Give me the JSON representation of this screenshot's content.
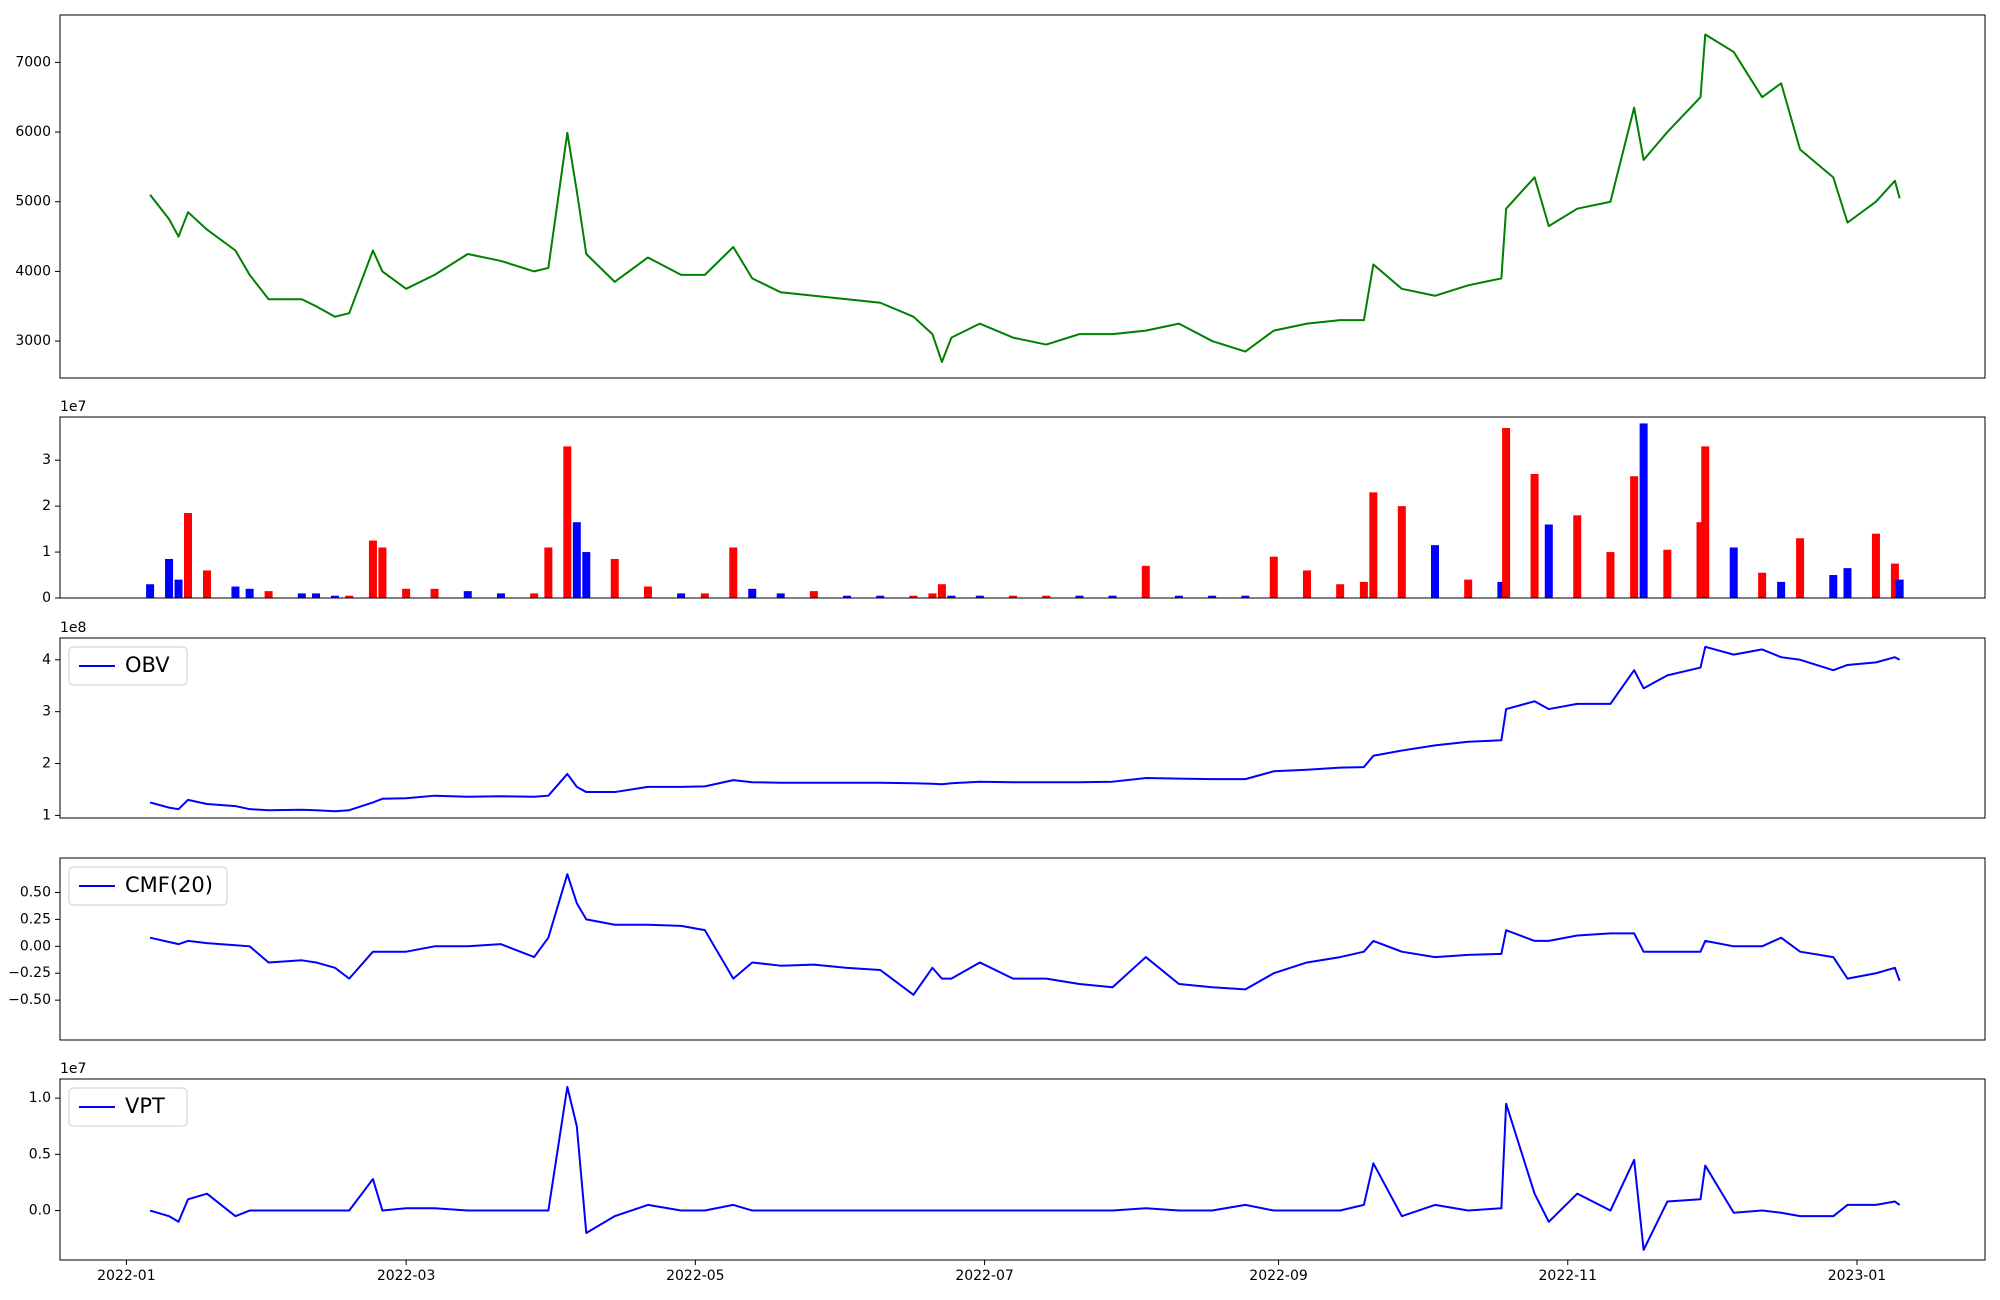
{
  "chart_data": [
    {
      "type": "line",
      "color": "#008000",
      "x": [
        "2022-01-06",
        "2022-01-10",
        "2022-01-12",
        "2022-01-14",
        "2022-01-18",
        "2022-01-24",
        "2022-01-27",
        "2022-01-31",
        "2022-02-07",
        "2022-02-10",
        "2022-02-14",
        "2022-02-17",
        "2022-02-22",
        "2022-02-24",
        "2022-03-01",
        "2022-03-07",
        "2022-03-14",
        "2022-03-21",
        "2022-03-28",
        "2022-03-31",
        "2022-04-04",
        "2022-04-06",
        "2022-04-08",
        "2022-04-14",
        "2022-04-21",
        "2022-04-28",
        "2022-05-03",
        "2022-05-09",
        "2022-05-13",
        "2022-05-19",
        "2022-05-26",
        "2022-06-02",
        "2022-06-09",
        "2022-06-16",
        "2022-06-20",
        "2022-06-22",
        "2022-06-24",
        "2022-06-30",
        "2022-07-07",
        "2022-07-14",
        "2022-07-21",
        "2022-07-28",
        "2022-08-04",
        "2022-08-11",
        "2022-08-18",
        "2022-08-25",
        "2022-08-31",
        "2022-09-07",
        "2022-09-14",
        "2022-09-19",
        "2022-09-21",
        "2022-09-27",
        "2022-10-04",
        "2022-10-11",
        "2022-10-18",
        "2022-10-19",
        "2022-10-25",
        "2022-10-28",
        "2022-11-03",
        "2022-11-10",
        "2022-11-15",
        "2022-11-17",
        "2022-11-22",
        "2022-11-29",
        "2022-11-30",
        "2022-12-06",
        "2022-12-12",
        "2022-12-16",
        "2022-12-20",
        "2022-12-27",
        "2022-12-30",
        "2023-01-05",
        "2023-01-09",
        "2023-01-10"
      ],
      "values": [
        5100,
        4750,
        4500,
        4850,
        4600,
        4300,
        3950,
        3600,
        3600,
        3500,
        3350,
        3400,
        4300,
        4000,
        3750,
        3950,
        4250,
        4150,
        4000,
        4050,
        5990,
        5150,
        4250,
        3850,
        4200,
        3950,
        3950,
        4350,
        3900,
        3700,
        3650,
        3600,
        3550,
        3350,
        3100,
        2700,
        3050,
        3250,
        3050,
        2950,
        3100,
        3100,
        3150,
        3250,
        3000,
        2850,
        3150,
        3250,
        3300,
        3300,
        4100,
        3750,
        3650,
        3800,
        3900,
        4900,
        5350,
        4650,
        4900,
        5000,
        6350,
        5600,
        6000,
        6500,
        7400,
        7150,
        6500,
        6700,
        5750,
        5350,
        4700,
        5000,
        5300,
        5050
      ],
      "xlim": [
        "2021-12-18",
        "2023-01-28"
      ],
      "ylim": [
        2470,
        7680
      ],
      "yticks": [
        3000,
        4000,
        5000,
        6000,
        7000
      ]
    },
    {
      "type": "bar",
      "y_offset_label": "1e7",
      "x": [
        "2022-01-06",
        "2022-01-10",
        "2022-01-12",
        "2022-01-14",
        "2022-01-18",
        "2022-01-24",
        "2022-01-27",
        "2022-01-31",
        "2022-02-07",
        "2022-02-10",
        "2022-02-14",
        "2022-02-17",
        "2022-02-22",
        "2022-02-24",
        "2022-03-01",
        "2022-03-07",
        "2022-03-14",
        "2022-03-21",
        "2022-03-28",
        "2022-03-31",
        "2022-04-04",
        "2022-04-06",
        "2022-04-08",
        "2022-04-14",
        "2022-04-21",
        "2022-04-28",
        "2022-05-03",
        "2022-05-09",
        "2022-05-13",
        "2022-05-19",
        "2022-05-26",
        "2022-06-02",
        "2022-06-09",
        "2022-06-16",
        "2022-06-20",
        "2022-06-22",
        "2022-06-24",
        "2022-06-30",
        "2022-07-07",
        "2022-07-14",
        "2022-07-21",
        "2022-07-28",
        "2022-08-04",
        "2022-08-11",
        "2022-08-18",
        "2022-08-25",
        "2022-08-31",
        "2022-09-07",
        "2022-09-14",
        "2022-09-19",
        "2022-09-21",
        "2022-09-27",
        "2022-10-04",
        "2022-10-11",
        "2022-10-18",
        "2022-10-19",
        "2022-10-25",
        "2022-10-28",
        "2022-11-03",
        "2022-11-10",
        "2022-11-15",
        "2022-11-17",
        "2022-11-22",
        "2022-11-29",
        "2022-11-30",
        "2022-12-06",
        "2022-12-12",
        "2022-12-16",
        "2022-12-20",
        "2022-12-27",
        "2022-12-30",
        "2023-01-05",
        "2023-01-09",
        "2023-01-10"
      ],
      "values": [
        0.3,
        0.85,
        0.4,
        1.85,
        0.6,
        0.25,
        0.2,
        0.15,
        0.1,
        0.1,
        0.05,
        0.05,
        1.25,
        1.1,
        0.2,
        0.2,
        0.15,
        0.1,
        0.1,
        1.1,
        3.3,
        1.65,
        1.0,
        0.85,
        0.25,
        0.1,
        0.1,
        1.1,
        0.2,
        0.1,
        0.15,
        0.05,
        0.05,
        0.05,
        0.1,
        0.3,
        0.05,
        0.05,
        0.05,
        0.05,
        0.05,
        0.05,
        0.7,
        0.05,
        0.05,
        0.05,
        0.9,
        0.6,
        0.3,
        0.35,
        2.3,
        2.0,
        1.15,
        0.4,
        0.35,
        3.7,
        2.7,
        1.6,
        1.8,
        1.0,
        2.65,
        3.8,
        1.05,
        1.65,
        3.3,
        1.1,
        0.55,
        0.35,
        1.3,
        0.5,
        0.65,
        1.4,
        0.75,
        0.4
      ],
      "colors": [
        "blue",
        "blue",
        "blue",
        "red",
        "red",
        "blue",
        "blue",
        "red",
        "blue",
        "blue",
        "blue",
        "red",
        "red",
        "red",
        "red",
        "red",
        "blue",
        "blue",
        "red",
        "red",
        "red",
        "blue",
        "blue",
        "red",
        "red",
        "blue",
        "red",
        "red",
        "blue",
        "blue",
        "red",
        "blue",
        "blue",
        "red",
        "red",
        "red",
        "blue",
        "blue",
        "red",
        "red",
        "blue",
        "blue",
        "red",
        "blue",
        "blue",
        "blue",
        "red",
        "red",
        "red",
        "red",
        "red",
        "red",
        "blue",
        "red",
        "blue",
        "red",
        "red",
        "blue",
        "red",
        "red",
        "red",
        "blue",
        "red",
        "red",
        "red",
        "blue",
        "red",
        "blue",
        "red",
        "blue",
        "blue",
        "red",
        "red",
        "blue"
      ],
      "xlim": [
        "2021-12-18",
        "2023-01-28"
      ],
      "ylim": [
        0,
        3.94
      ],
      "yticks": [
        0,
        1,
        2,
        3
      ]
    },
    {
      "type": "line",
      "y_offset_label": "1e8",
      "legend": "upper left",
      "x": [
        "2022-01-06",
        "2022-01-10",
        "2022-01-12",
        "2022-01-14",
        "2022-01-18",
        "2022-01-24",
        "2022-01-27",
        "2022-01-31",
        "2022-02-07",
        "2022-02-10",
        "2022-02-14",
        "2022-02-17",
        "2022-02-22",
        "2022-02-24",
        "2022-03-01",
        "2022-03-07",
        "2022-03-14",
        "2022-03-21",
        "2022-03-28",
        "2022-03-31",
        "2022-04-04",
        "2022-04-06",
        "2022-04-08",
        "2022-04-14",
        "2022-04-21",
        "2022-04-28",
        "2022-05-03",
        "2022-05-09",
        "2022-05-13",
        "2022-05-19",
        "2022-05-26",
        "2022-06-02",
        "2022-06-09",
        "2022-06-16",
        "2022-06-20",
        "2022-06-22",
        "2022-06-24",
        "2022-06-30",
        "2022-07-07",
        "2022-07-14",
        "2022-07-21",
        "2022-07-28",
        "2022-08-04",
        "2022-08-11",
        "2022-08-18",
        "2022-08-25",
        "2022-08-31",
        "2022-09-07",
        "2022-09-14",
        "2022-09-19",
        "2022-09-21",
        "2022-09-27",
        "2022-10-04",
        "2022-10-11",
        "2022-10-18",
        "2022-10-19",
        "2022-10-25",
        "2022-10-28",
        "2022-11-03",
        "2022-11-10",
        "2022-11-15",
        "2022-11-17",
        "2022-11-22",
        "2022-11-29",
        "2022-11-30",
        "2022-12-06",
        "2022-12-12",
        "2022-12-16",
        "2022-12-20",
        "2022-12-27",
        "2022-12-30",
        "2023-01-05",
        "2023-01-09",
        "2023-01-10"
      ],
      "series": [
        {
          "name": "OBV",
          "color": "#0000ff",
          "values": [
            1.25,
            1.15,
            1.12,
            1.3,
            1.22,
            1.18,
            1.12,
            1.1,
            1.11,
            1.1,
            1.08,
            1.1,
            1.25,
            1.32,
            1.33,
            1.38,
            1.36,
            1.37,
            1.36,
            1.38,
            1.8,
            1.55,
            1.45,
            1.45,
            1.55,
            1.55,
            1.56,
            1.68,
            1.64,
            1.63,
            1.63,
            1.63,
            1.63,
            1.62,
            1.61,
            1.6,
            1.62,
            1.65,
            1.64,
            1.64,
            1.64,
            1.65,
            1.72,
            1.71,
            1.7,
            1.7,
            1.85,
            1.88,
            1.92,
            1.93,
            2.15,
            2.25,
            2.35,
            2.42,
            2.45,
            3.05,
            3.2,
            3.05,
            3.15,
            3.15,
            3.8,
            3.45,
            3.7,
            3.85,
            4.25,
            4.1,
            4.2,
            4.05,
            4.0,
            3.8,
            3.9,
            3.95,
            4.05,
            4.0
          ]
        }
      ],
      "xlim": [
        "2021-12-18",
        "2023-01-28"
      ],
      "ylim": [
        0.95,
        4.42
      ],
      "yticks": [
        1,
        2,
        3,
        4
      ]
    },
    {
      "type": "line",
      "legend": "upper left",
      "x": [
        "2022-01-06",
        "2022-01-10",
        "2022-01-12",
        "2022-01-14",
        "2022-01-18",
        "2022-01-24",
        "2022-01-27",
        "2022-01-31",
        "2022-02-07",
        "2022-02-10",
        "2022-02-14",
        "2022-02-17",
        "2022-02-22",
        "2022-02-24",
        "2022-03-01",
        "2022-03-07",
        "2022-03-14",
        "2022-03-21",
        "2022-03-28",
        "2022-03-31",
        "2022-04-04",
        "2022-04-06",
        "2022-04-08",
        "2022-04-14",
        "2022-04-21",
        "2022-04-28",
        "2022-05-03",
        "2022-05-09",
        "2022-05-13",
        "2022-05-19",
        "2022-05-26",
        "2022-06-02",
        "2022-06-09",
        "2022-06-16",
        "2022-06-20",
        "2022-06-22",
        "2022-06-24",
        "2022-06-30",
        "2022-07-07",
        "2022-07-14",
        "2022-07-21",
        "2022-07-28",
        "2022-08-04",
        "2022-08-11",
        "2022-08-18",
        "2022-08-25",
        "2022-08-31",
        "2022-09-07",
        "2022-09-14",
        "2022-09-19",
        "2022-09-21",
        "2022-09-27",
        "2022-10-04",
        "2022-10-11",
        "2022-10-18",
        "2022-10-19",
        "2022-10-25",
        "2022-10-28",
        "2022-11-03",
        "2022-11-10",
        "2022-11-15",
        "2022-11-17",
        "2022-11-22",
        "2022-11-29",
        "2022-11-30",
        "2022-12-06",
        "2022-12-12",
        "2022-12-16",
        "2022-12-20",
        "2022-12-27",
        "2022-12-30",
        "2023-01-05",
        "2023-01-09",
        "2023-01-10"
      ],
      "series": [
        {
          "name": "CMF(20)",
          "color": "#0000ff",
          "values": [
            0.08,
            0.04,
            0.02,
            0.05,
            0.03,
            0.01,
            0.0,
            -0.15,
            -0.13,
            -0.15,
            -0.2,
            -0.3,
            -0.05,
            -0.05,
            -0.05,
            0.0,
            0.0,
            0.02,
            -0.1,
            0.08,
            0.67,
            0.4,
            0.25,
            0.2,
            0.2,
            0.19,
            0.15,
            -0.3,
            -0.15,
            -0.18,
            -0.17,
            -0.2,
            -0.22,
            -0.45,
            -0.2,
            -0.3,
            -0.3,
            -0.15,
            -0.3,
            -0.3,
            -0.35,
            -0.38,
            -0.1,
            -0.35,
            -0.38,
            -0.4,
            -0.25,
            -0.15,
            -0.1,
            -0.05,
            0.05,
            -0.05,
            -0.1,
            -0.08,
            -0.07,
            0.15,
            0.05,
            0.05,
            0.1,
            0.12,
            0.12,
            -0.05,
            -0.05,
            -0.05,
            0.05,
            0.0,
            0.0,
            0.08,
            -0.05,
            -0.1,
            -0.3,
            -0.25,
            -0.2,
            -0.32
          ]
        }
      ],
      "xlim": [
        "2021-12-18",
        "2023-01-28"
      ],
      "ylim": [
        -0.87,
        0.82
      ],
      "yticks": [
        {
          "value": -0.5,
          "label": "−0.50"
        },
        {
          "value": -0.25,
          "label": "−0.25"
        },
        {
          "value": 0,
          "label": "0.00"
        },
        {
          "value": 0.25,
          "label": "0.25"
        },
        {
          "value": 0.5,
          "label": "0.50"
        }
      ]
    },
    {
      "type": "line",
      "y_offset_label": "1e7",
      "legend": "upper left",
      "x": [
        "2022-01-06",
        "2022-01-10",
        "2022-01-12",
        "2022-01-14",
        "2022-01-18",
        "2022-01-24",
        "2022-01-27",
        "2022-01-31",
        "2022-02-07",
        "2022-02-10",
        "2022-02-14",
        "2022-02-17",
        "2022-02-22",
        "2022-02-24",
        "2022-03-01",
        "2022-03-07",
        "2022-03-14",
        "2022-03-21",
        "2022-03-28",
        "2022-03-31",
        "2022-04-04",
        "2022-04-06",
        "2022-04-08",
        "2022-04-14",
        "2022-04-21",
        "2022-04-28",
        "2022-05-03",
        "2022-05-09",
        "2022-05-13",
        "2022-05-19",
        "2022-05-26",
        "2022-06-02",
        "2022-06-09",
        "2022-06-16",
        "2022-06-20",
        "2022-06-22",
        "2022-06-24",
        "2022-06-30",
        "2022-07-07",
        "2022-07-14",
        "2022-07-21",
        "2022-07-28",
        "2022-08-04",
        "2022-08-11",
        "2022-08-18",
        "2022-08-25",
        "2022-08-31",
        "2022-09-07",
        "2022-09-14",
        "2022-09-19",
        "2022-09-21",
        "2022-09-27",
        "2022-10-04",
        "2022-10-11",
        "2022-10-18",
        "2022-10-19",
        "2022-10-25",
        "2022-10-28",
        "2022-11-03",
        "2022-11-10",
        "2022-11-15",
        "2022-11-17",
        "2022-11-22",
        "2022-11-29",
        "2022-11-30",
        "2022-12-06",
        "2022-12-12",
        "2022-12-16",
        "2022-12-20",
        "2022-12-27",
        "2022-12-30",
        "2023-01-05",
        "2023-01-09",
        "2023-01-10"
      ],
      "series": [
        {
          "name": "VPT",
          "color": "#0000ff",
          "values": [
            0.0,
            -0.05,
            -0.1,
            0.1,
            0.15,
            -0.05,
            0.0,
            0.0,
            0.0,
            0.0,
            0.0,
            0.0,
            0.28,
            0.0,
            0.02,
            0.02,
            0.0,
            0.0,
            0.0,
            0.0,
            1.1,
            0.75,
            -0.2,
            -0.05,
            0.05,
            0.0,
            0.0,
            0.05,
            0.0,
            0.0,
            0.0,
            0.0,
            0.0,
            0.0,
            0.0,
            0.0,
            0.0,
            0.0,
            0.0,
            0.0,
            0.0,
            0.0,
            0.02,
            0.0,
            0.0,
            0.05,
            0.0,
            0.0,
            0.0,
            0.05,
            0.42,
            -0.05,
            0.05,
            0.0,
            0.02,
            0.95,
            0.15,
            -0.1,
            0.15,
            0.0,
            0.45,
            -0.35,
            0.08,
            0.1,
            0.4,
            -0.02,
            0.0,
            -0.02,
            -0.05,
            -0.05,
            0.05,
            0.05,
            0.08,
            0.05
          ]
        }
      ],
      "xlim": [
        "2021-12-18",
        "2023-01-28"
      ],
      "ylim": [
        -0.44,
        1.17
      ],
      "yticks": [
        {
          "value": 0,
          "label": "0.0"
        },
        {
          "value": 0.5,
          "label": "0.5"
        },
        {
          "value": 1,
          "label": "1.0"
        }
      ],
      "xticks": [
        {
          "value": "2022-01-01",
          "label": "2022-01"
        },
        {
          "value": "2022-03-01",
          "label": "2022-03"
        },
        {
          "value": "2022-05-01",
          "label": "2022-05"
        },
        {
          "value": "2022-07-01",
          "label": "2022-07"
        },
        {
          "value": "2022-09-01",
          "label": "2022-09"
        },
        {
          "value": "2022-11-01",
          "label": "2022-11"
        },
        {
          "value": "2023-01-01",
          "label": "2023-01"
        }
      ]
    }
  ]
}
